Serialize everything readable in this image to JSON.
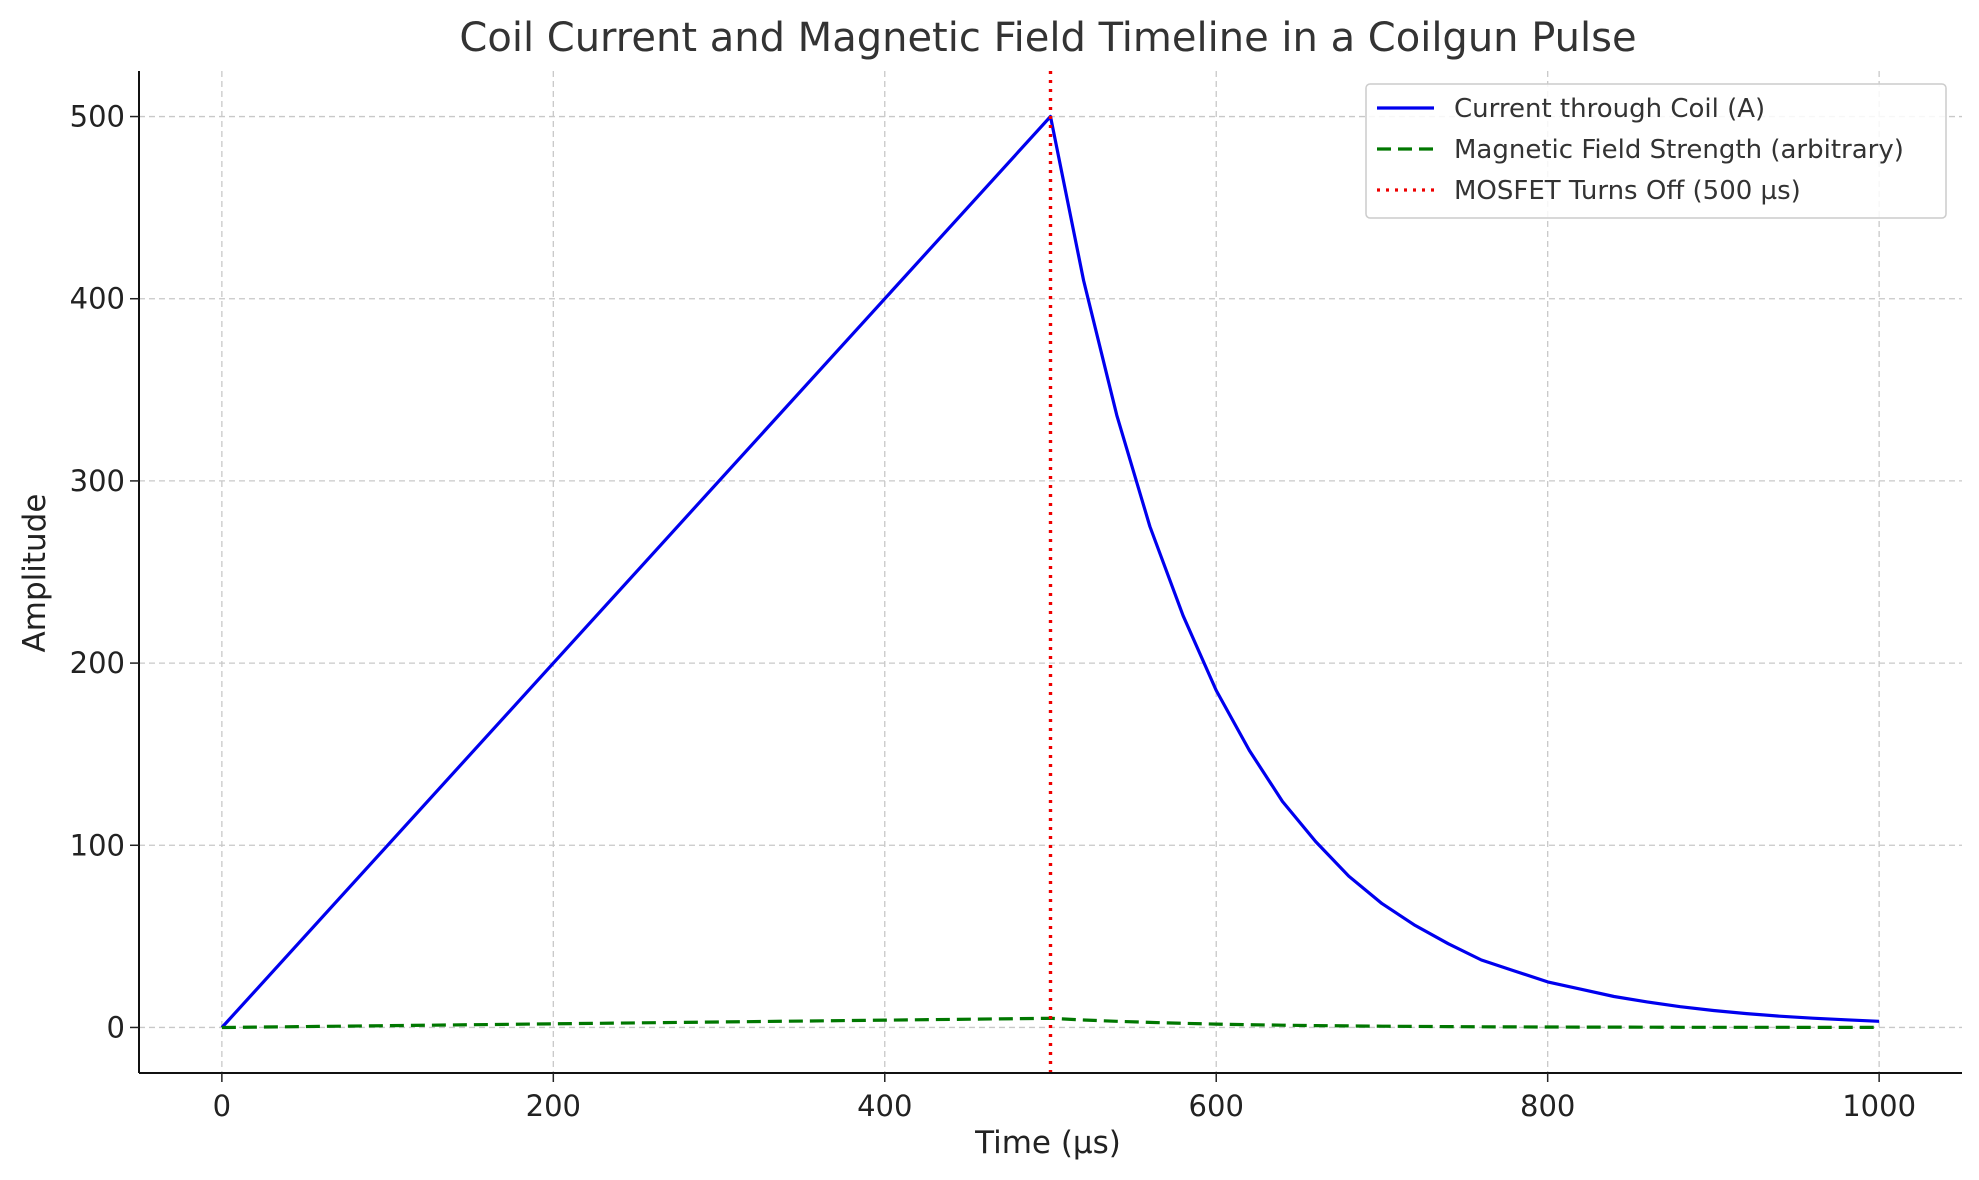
{
  "chart_data": {
    "type": "line",
    "title": "Coil Current and Magnetic Field Timeline in a Coilgun Pulse",
    "xlabel": "Time (µs)",
    "ylabel": "Amplitude",
    "xlim": [
      -50,
      1050
    ],
    "ylim": [
      -25,
      525
    ],
    "xticks": [
      0,
      200,
      400,
      600,
      800,
      1000
    ],
    "yticks": [
      0,
      100,
      200,
      300,
      400,
      500
    ],
    "grid": true,
    "legend_position": "top-right",
    "series": [
      {
        "name": "Current through Coil (A)",
        "color": "#0000ee",
        "style": "solid",
        "x": [
          0,
          500,
          520,
          540,
          560,
          580,
          600,
          620,
          640,
          660,
          680,
          700,
          720,
          740,
          760,
          780,
          800,
          820,
          840,
          860,
          880,
          900,
          920,
          940,
          960,
          980,
          1000
        ],
        "y": [
          0,
          500,
          410,
          336,
          275,
          226,
          185,
          152,
          124,
          102,
          83,
          68,
          56,
          46,
          37,
          31,
          25,
          21,
          17,
          14,
          11.4,
          9.3,
          7.6,
          6.2,
          5.1,
          4.2,
          3.4
        ]
      },
      {
        "name": "Magnetic Field Strength (arbitrary)",
        "color": "#007700",
        "style": "dashed",
        "x": [
          0,
          500,
          520,
          540,
          560,
          580,
          600,
          620,
          640,
          660,
          680,
          700,
          720,
          740,
          760,
          780,
          800,
          820,
          840,
          860,
          880,
          900,
          920,
          940,
          960,
          980,
          1000
        ],
        "y": [
          0,
          5,
          4.1,
          3.36,
          2.75,
          2.26,
          1.85,
          1.52,
          1.24,
          1.02,
          0.83,
          0.68,
          0.56,
          0.46,
          0.37,
          0.31,
          0.25,
          0.21,
          0.17,
          0.14,
          0.11,
          0.09,
          0.08,
          0.06,
          0.05,
          0.04,
          0.03
        ]
      }
    ],
    "vlines": [
      {
        "name": "MOSFET Turns Off (500 µs)",
        "x": 500,
        "color": "#ee0000",
        "style": "dotted"
      }
    ]
  }
}
